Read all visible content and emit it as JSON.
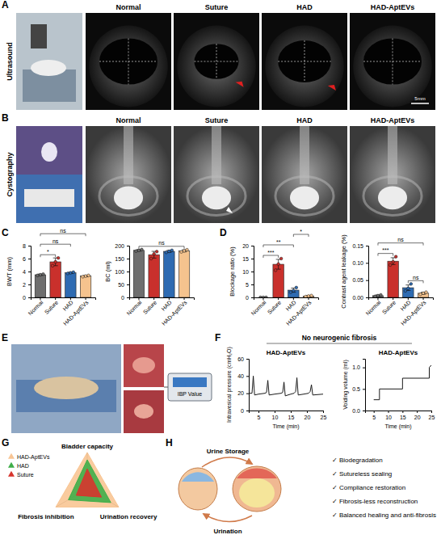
{
  "chart_data": [
    {
      "type": "bar",
      "y_label": "BWT (mm)",
      "categories": [
        "Normal",
        "Suture",
        "HAD",
        "HAD-AptEVs"
      ],
      "values": [
        3.5,
        5.5,
        3.8,
        3.3
      ],
      "errors": [
        0.1,
        0.6,
        0.1,
        0.1
      ],
      "points": [
        [
          3.4,
          3.5,
          3.6
        ],
        [
          4.9,
          5.5,
          6.1
        ],
        [
          3.7,
          3.8,
          3.9
        ],
        [
          3.2,
          3.3,
          3.4
        ]
      ],
      "colors": [
        "#6e6e6e",
        "#c9302c",
        "#2e6bb2",
        "#f5c38e"
      ],
      "ylim": [
        0,
        8
      ],
      "yticks": [
        0,
        2,
        4,
        6,
        8
      ],
      "significance": [
        {
          "label": "*",
          "groups": [
            "Normal",
            "Suture"
          ]
        },
        {
          "label": "ns",
          "groups": [
            "Normal",
            "HAD"
          ]
        },
        {
          "label": "ns",
          "groups": [
            "Normal",
            "HAD-AptEVs"
          ]
        }
      ]
    },
    {
      "type": "bar",
      "y_label": "BC (ml)",
      "categories": [
        "Normal",
        "Suture",
        "HAD",
        "HAD-AptEVs"
      ],
      "values": [
        182,
        165,
        178,
        180
      ],
      "errors": [
        3,
        13,
        4,
        4
      ],
      "points": [
        [
          179,
          182,
          185
        ],
        [
          150,
          168,
          177
        ],
        [
          174,
          178,
          182
        ],
        [
          176,
          180,
          184
        ]
      ],
      "colors": [
        "#6e6e6e",
        "#c9302c",
        "#2e6bb2",
        "#f5c38e"
      ],
      "ylim": [
        0,
        200
      ],
      "yticks": [
        0,
        50,
        100,
        150,
        200
      ],
      "significance": [
        {
          "label": "ns",
          "groups": [
            "Normal",
            "HAD-AptEVs"
          ]
        }
      ]
    },
    {
      "type": "bar",
      "y_label": "Blockage ratio (%)",
      "categories": [
        "Normal",
        "Suture",
        "HAD",
        "HAD-AptEVs"
      ],
      "values": [
        0,
        12.8,
        2.8,
        0.5
      ],
      "errors": [
        0,
        1.9,
        0.8,
        0.2
      ],
      "points": [
        [
          0,
          0,
          0
        ],
        [
          10.5,
          12.9,
          15
        ],
        [
          2,
          2.6,
          3.8
        ],
        [
          0.3,
          0.5,
          0.7
        ]
      ],
      "colors": [
        "#6e6e6e",
        "#c9302c",
        "#2e6bb2",
        "#f5c38e"
      ],
      "ylim": [
        0,
        20
      ],
      "yticks": [
        0,
        5,
        10,
        15,
        20
      ],
      "significance": [
        {
          "label": "***",
          "groups": [
            "Normal",
            "Suture"
          ]
        },
        {
          "label": "**",
          "groups": [
            "Normal",
            "HAD"
          ]
        },
        {
          "label": "*",
          "groups": [
            "HAD",
            "HAD-AptEVs"
          ]
        }
      ]
    },
    {
      "type": "bar",
      "y_label": "Contrast agent leakage (%)",
      "categories": [
        "Normal",
        "Suture",
        "HAD",
        "HAD-AptEVs"
      ],
      "values": [
        0.005,
        0.105,
        0.028,
        0.012
      ],
      "errors": [
        0.002,
        0.01,
        0.008,
        0.003
      ],
      "points": [
        [
          0.003,
          0.005,
          0.007
        ],
        [
          0.094,
          0.103,
          0.118
        ],
        [
          0.019,
          0.026,
          0.039
        ],
        [
          0.009,
          0.012,
          0.015
        ]
      ],
      "colors": [
        "#6e6e6e",
        "#c9302c",
        "#2e6bb2",
        "#f5c38e"
      ],
      "ylim": [
        0,
        0.15
      ],
      "yticks": [
        {
          "value": 0,
          "label": "0.00"
        },
        {
          "value": 0.05,
          "label": "0.05"
        },
        {
          "value": 0.1,
          "label": "0.10"
        },
        {
          "value": 0.15,
          "label": "0.15"
        }
      ],
      "significance": [
        {
          "label": "***",
          "groups": [
            "Normal",
            "Suture"
          ]
        },
        {
          "label": "ns",
          "groups": [
            "HAD",
            "HAD-AptEVs"
          ]
        },
        {
          "label": "ns",
          "groups": [
            "Normal",
            "HAD-AptEVs"
          ]
        }
      ]
    },
    {
      "type": "line",
      "title": "HAD-AptEVs",
      "x_label": "Time (min)",
      "y_label": "Intravesical pressure (cmH₂O)",
      "x": [
        2,
        3,
        3.4,
        3.8,
        5,
        7,
        7.5,
        7.9,
        8.3,
        10,
        12,
        12.5,
        12.9,
        13.3,
        15,
        16,
        16.5,
        16.9,
        17.3,
        19,
        20.5,
        21,
        21.4,
        21.8,
        25
      ],
      "values": [
        20,
        20,
        40,
        18,
        19,
        20,
        21,
        35,
        18,
        19,
        20,
        21,
        33,
        17,
        19,
        20,
        22,
        38,
        18,
        19,
        20,
        22,
        30,
        18,
        19
      ],
      "color": "#1a1a1a",
      "xlim": [
        2,
        25
      ],
      "xticks": [
        5,
        10,
        15,
        20,
        25
      ],
      "ylim": [
        0,
        60
      ],
      "yticks": [
        0,
        20,
        40,
        60
      ]
    },
    {
      "type": "line",
      "title": "HAD-AptEVs",
      "x_label": "Time (min)",
      "y_label": "Voiding volume (ml)",
      "x": [
        5,
        7,
        7,
        15,
        15,
        24.3,
        24.3,
        25
      ],
      "values": [
        0.25,
        0.25,
        0.5,
        0.5,
        0.75,
        0.75,
        1.0,
        1.05
      ],
      "color": "#1a1a1a",
      "xlim": [
        2,
        25
      ],
      "xticks": [
        5,
        10,
        15,
        20,
        25
      ],
      "ylim": [
        0,
        1.2
      ],
      "yticks": [
        {
          "value": 0,
          "label": "0.0"
        },
        {
          "value": 0.5,
          "label": "0.5"
        },
        {
          "value": 1,
          "label": "1.0"
        }
      ]
    },
    {
      "type": "radar",
      "axes": [
        "Bladder capacity",
        "Urination recovery",
        "Fibrosis inhibition"
      ],
      "ylim": [
        0,
        1
      ],
      "tick_labels": false,
      "legend": "top-left",
      "series": [
        {
          "name": "HAD-AptEVs",
          "color": "#f8c594",
          "values": [
            1,
            1,
            1
          ]
        },
        {
          "name": "HAD",
          "color": "#3fae49",
          "values": [
            0.8,
            0.75,
            0.6
          ]
        },
        {
          "name": "Suture",
          "color": "#d7352d",
          "values": [
            0.55,
            0.45,
            0.35
          ]
        }
      ]
    }
  ],
  "figure": {
    "letters": [
      "A",
      "B",
      "C",
      "D",
      "E",
      "F",
      "G",
      "H"
    ],
    "ultrasound": {
      "label": "Ultrasound",
      "headers": [
        "Normal",
        "Suture",
        "HAD",
        "HAD-AptEVs"
      ],
      "scale_bar": "5mm"
    },
    "cystography": {
      "label": "Cystography",
      "headers": [
        "Normal",
        "Suture",
        "HAD",
        "HAD-AptEVs"
      ]
    },
    "surgery": {
      "device_label": "IBP Value"
    },
    "pressure_title": "No neurogenic fibrosis",
    "schematic": {
      "storage": "Urine Storage",
      "urination": "Urination",
      "checklist": [
        "✓ Biodegradation",
        "✓ Sutureless sealing",
        "✓ Compliance restoration",
        "✓ Fibrosis-less reconstruction",
        "✓ Balanced healing and anti-fibrosis"
      ]
    }
  }
}
